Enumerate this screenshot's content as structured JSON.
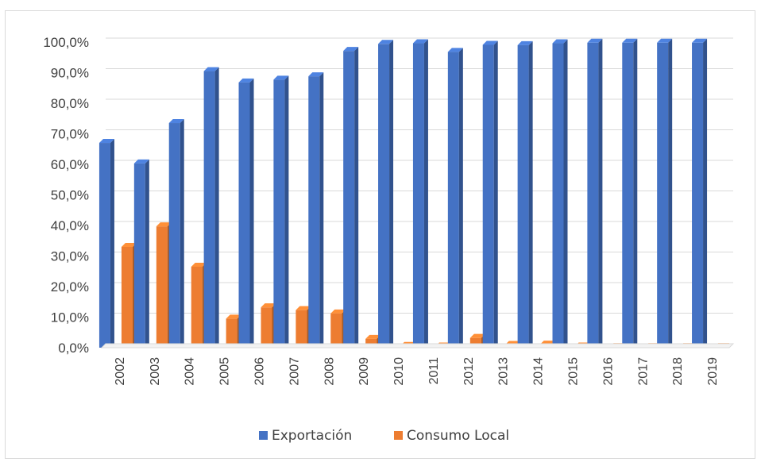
{
  "chart_data": {
    "type": "bar",
    "categories": [
      "2002",
      "2003",
      "2004",
      "2005",
      "2006",
      "2007",
      "2008",
      "2009",
      "2010",
      "2011",
      "2012",
      "2013",
      "2014",
      "2015",
      "2016",
      "2017",
      "2018",
      "2019"
    ],
    "series": [
      {
        "name": "Exportación",
        "color": "#4472c4",
        "values": [
          67.0,
          60.3,
          73.5,
          90.5,
          86.8,
          87.7,
          88.8,
          97.1,
          99.4,
          99.6,
          96.8,
          99.1,
          99.0,
          99.6,
          99.8,
          99.8,
          99.8,
          99.8
        ]
      },
      {
        "name": "Consumo Local",
        "color": "#ed7d31",
        "values": [
          33.0,
          39.7,
          26.5,
          9.5,
          13.2,
          12.3,
          11.2,
          2.9,
          0.6,
          0.4,
          3.2,
          0.9,
          1.0,
          0.4,
          0.2,
          0.2,
          0.2,
          0.2
        ]
      }
    ],
    "y_ticks": [
      "0,0%",
      "10,0%",
      "20,0%",
      "30,0%",
      "40,0%",
      "50,0%",
      "60,0%",
      "70,0%",
      "80,0%",
      "90,0%",
      "100,0%"
    ],
    "ylim": [
      0,
      100
    ],
    "grid": true,
    "legend": "bottom",
    "title": "",
    "xlabel": "",
    "ylabel": ""
  }
}
